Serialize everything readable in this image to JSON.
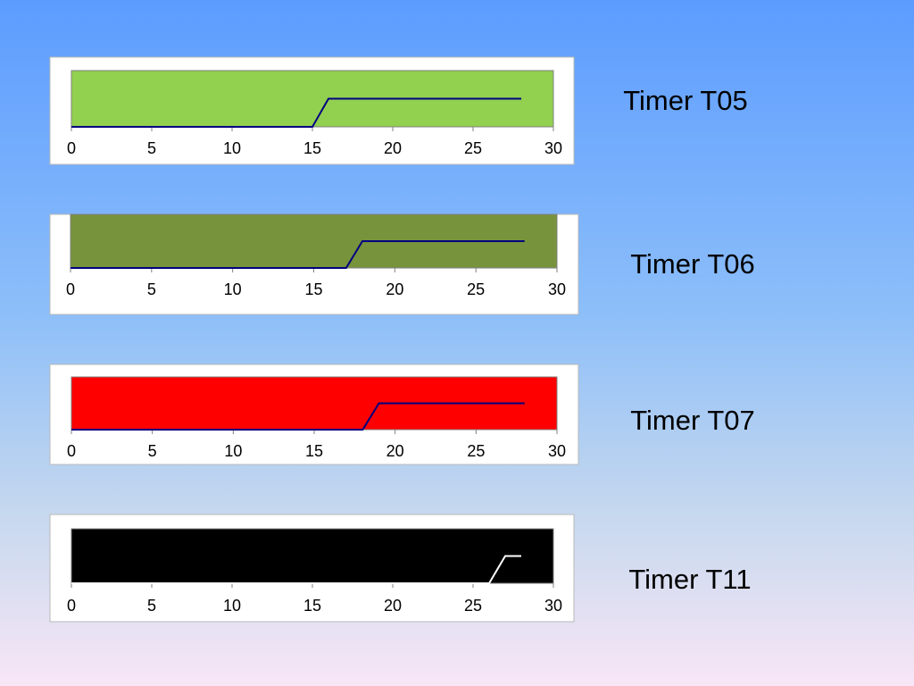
{
  "chart_data": [
    {
      "type": "line",
      "title": "Timer T05",
      "x": [
        0,
        15,
        16,
        28
      ],
      "values": [
        0,
        0,
        1,
        1
      ],
      "color": "#000080",
      "plot_color": "#92d050",
      "xlim": [
        0,
        30
      ],
      "xticks": [
        0,
        5,
        10,
        15,
        20,
        25,
        30
      ],
      "ylim": [
        0,
        2
      ]
    },
    {
      "type": "line",
      "title": "Timer T06",
      "x": [
        0,
        17,
        18,
        28
      ],
      "values": [
        0,
        0,
        1,
        1
      ],
      "color": "#000080",
      "plot_color": "#77933c",
      "xlim": [
        0,
        30
      ],
      "xticks": [
        0,
        5,
        10,
        15,
        20,
        25,
        30
      ],
      "ylim": [
        0,
        2
      ]
    },
    {
      "type": "line",
      "title": "Timer T07",
      "x": [
        0,
        18,
        19,
        28
      ],
      "values": [
        0,
        0,
        1,
        1
      ],
      "color": "#000080",
      "plot_color": "#ff0000",
      "xlim": [
        0,
        30
      ],
      "xticks": [
        0,
        5,
        10,
        15,
        20,
        25,
        30
      ],
      "ylim": [
        0,
        2
      ]
    },
    {
      "type": "line",
      "title": "Timer T11",
      "x": [
        0,
        26,
        27,
        28
      ],
      "values": [
        0,
        0,
        1,
        1
      ],
      "color": "#ffffff",
      "plot_color": "#000000",
      "xlim": [
        0,
        30
      ],
      "xticks": [
        0,
        5,
        10,
        15,
        20,
        25,
        30
      ],
      "ylim": [
        0,
        2
      ]
    }
  ]
}
